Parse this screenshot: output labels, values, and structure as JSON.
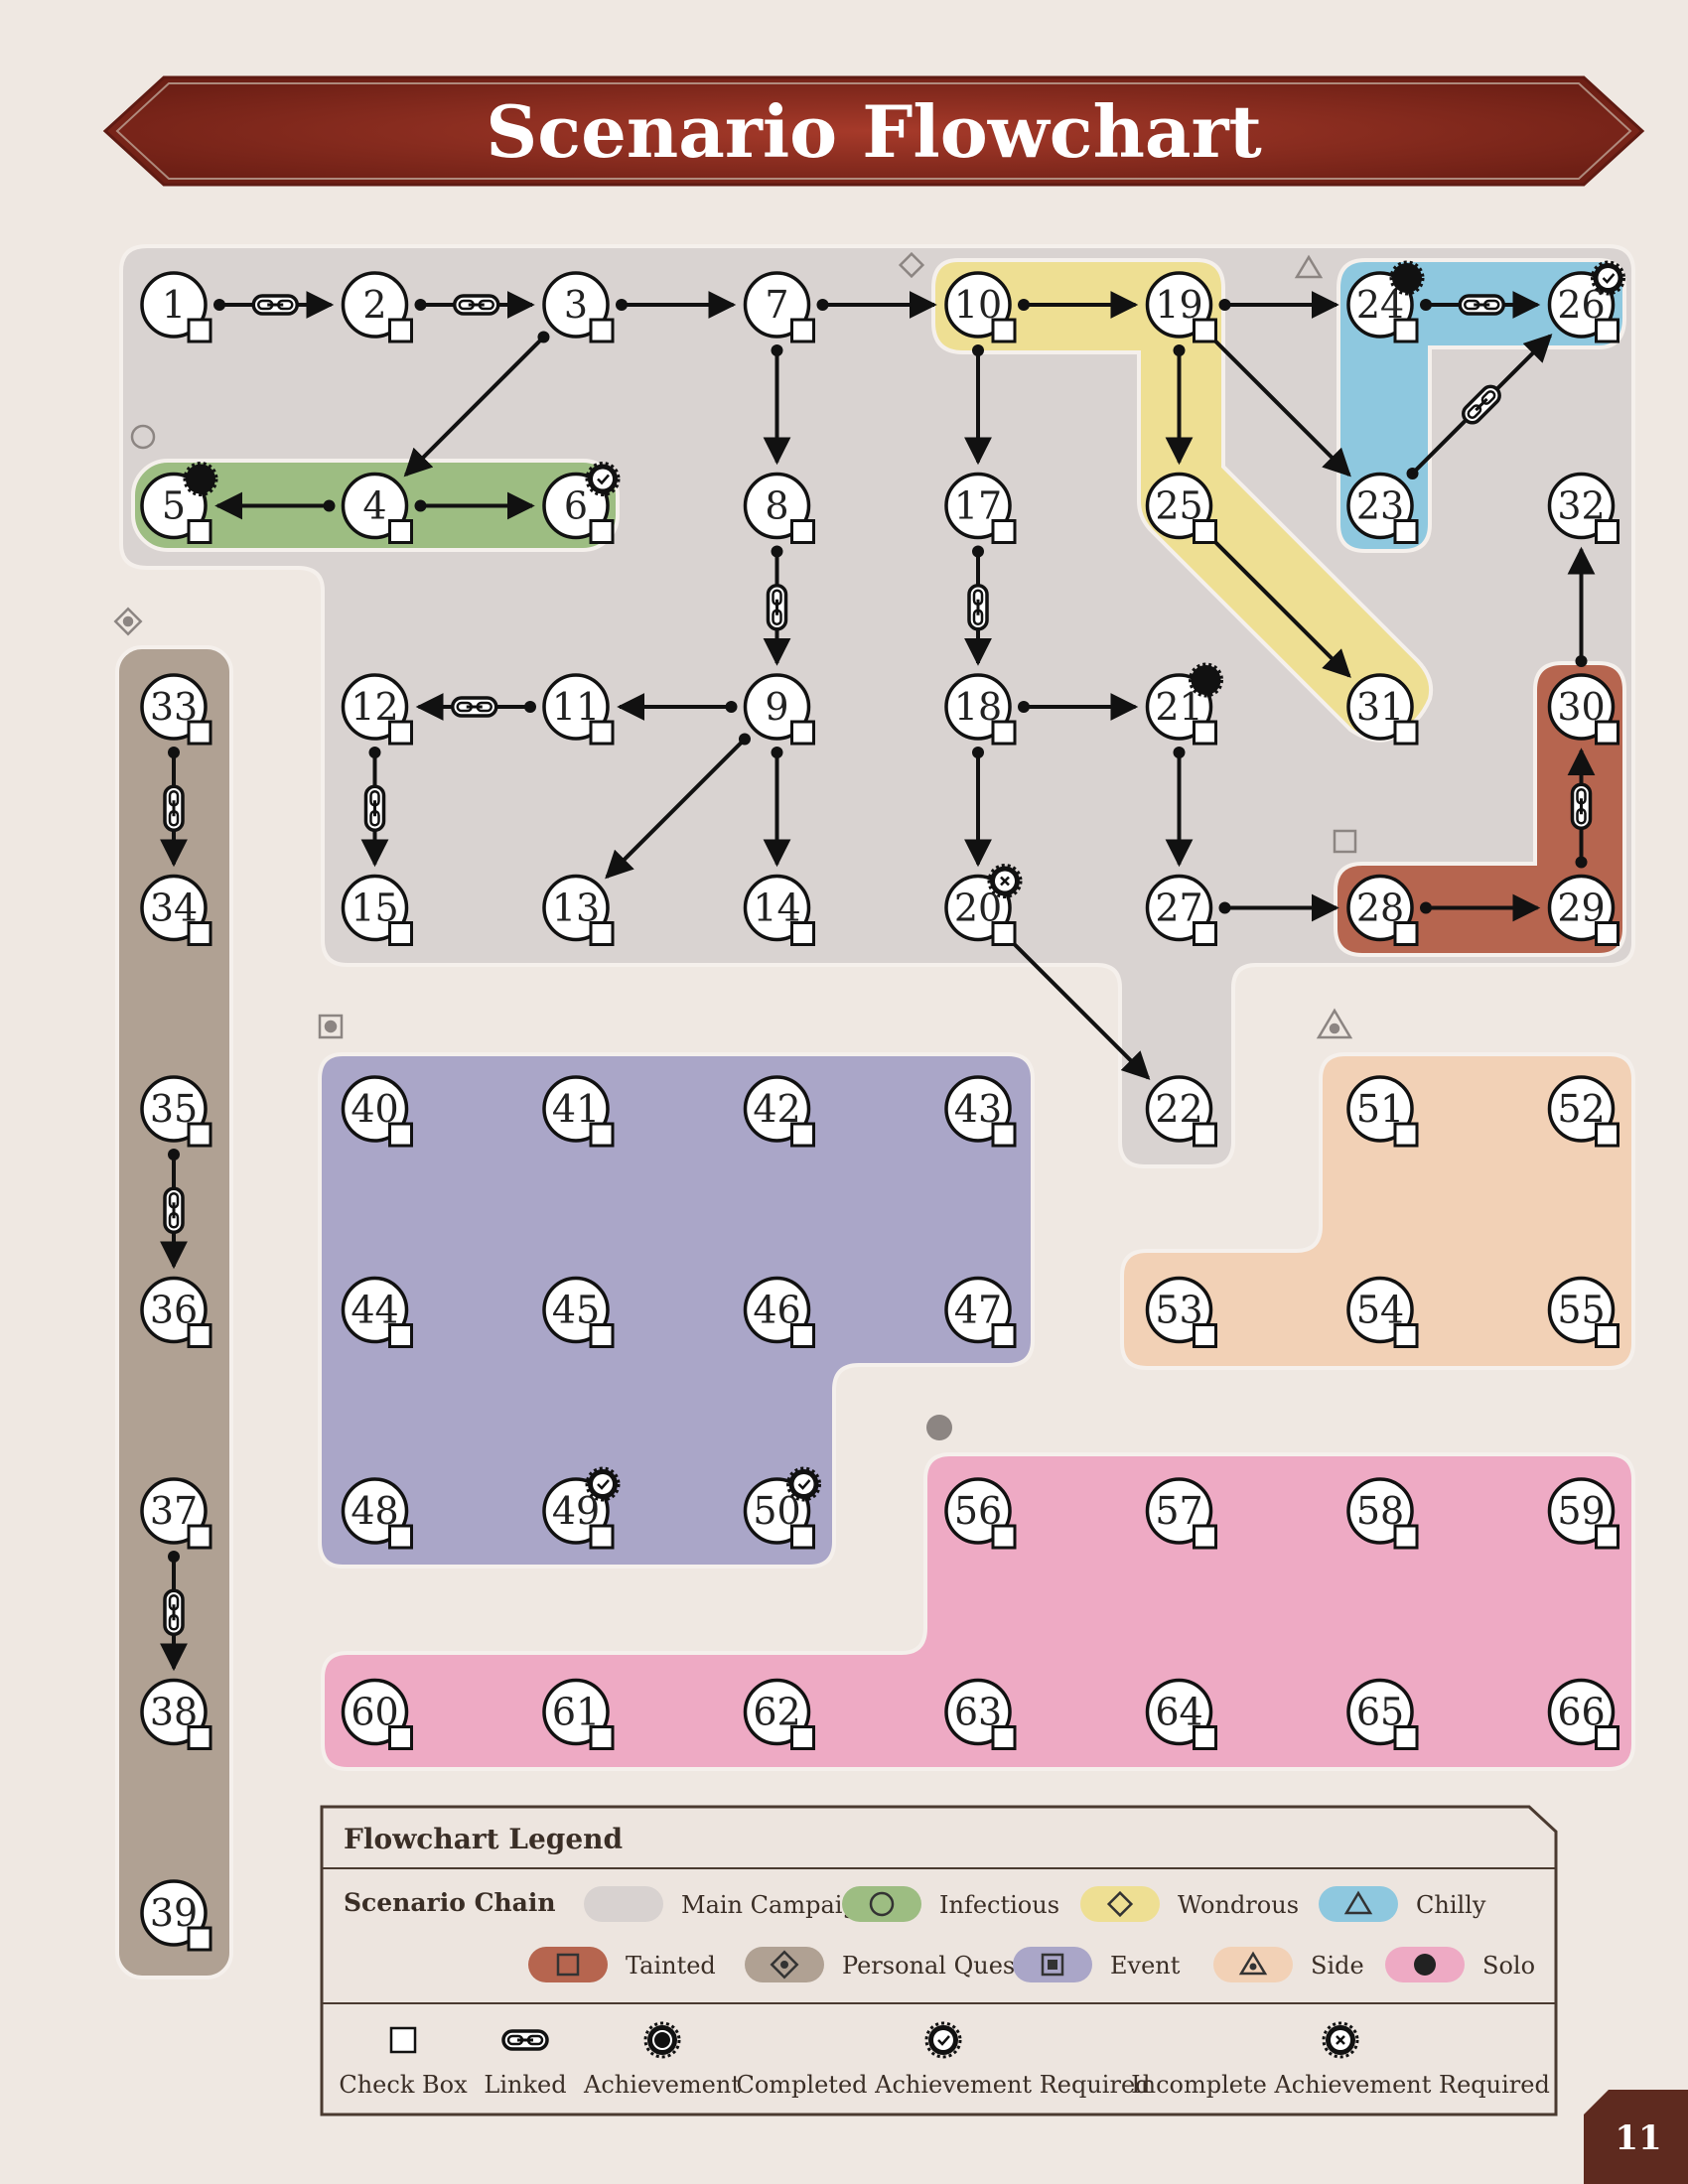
{
  "title": "Scenario Flowchart",
  "page_number": "11",
  "colors": {
    "page_bg": "#efe8e2",
    "banner": "#8a2a1e",
    "main_campaign": "#d8d2d0",
    "infectious": "#9dbd82",
    "wondrous": "#eedf93",
    "chilly": "#8ec8df",
    "tainted": "#b6654f",
    "personal_quest": "#b0a193",
    "event": "#aaa6c8",
    "side": "#f2d1b6",
    "solo": "#eeaac4",
    "line": "#111111"
  },
  "nodes": [
    {
      "id": "1",
      "col": 0,
      "row": 0,
      "badge": ""
    },
    {
      "id": "2",
      "col": 1,
      "row": 0,
      "badge": ""
    },
    {
      "id": "3",
      "col": 2,
      "row": 0,
      "badge": ""
    },
    {
      "id": "7",
      "col": 3,
      "row": 0,
      "badge": ""
    },
    {
      "id": "10",
      "col": 4,
      "row": 0,
      "badge": ""
    },
    {
      "id": "19",
      "col": 5,
      "row": 0,
      "badge": ""
    },
    {
      "id": "24",
      "col": 6,
      "row": 0,
      "badge": "achievement"
    },
    {
      "id": "26",
      "col": 7,
      "row": 0,
      "badge": "completed"
    },
    {
      "id": "5",
      "col": 0,
      "row": 1,
      "badge": "achievement"
    },
    {
      "id": "4",
      "col": 1,
      "row": 1,
      "badge": ""
    },
    {
      "id": "6",
      "col": 2,
      "row": 1,
      "badge": "completed"
    },
    {
      "id": "8",
      "col": 3,
      "row": 1,
      "badge": ""
    },
    {
      "id": "17",
      "col": 4,
      "row": 1,
      "badge": ""
    },
    {
      "id": "25",
      "col": 5,
      "row": 1,
      "badge": ""
    },
    {
      "id": "23",
      "col": 6,
      "row": 1,
      "badge": ""
    },
    {
      "id": "32",
      "col": 7,
      "row": 1,
      "badge": ""
    },
    {
      "id": "33",
      "col": 0,
      "row": 2,
      "badge": ""
    },
    {
      "id": "12",
      "col": 1,
      "row": 2,
      "badge": ""
    },
    {
      "id": "11",
      "col": 2,
      "row": 2,
      "badge": ""
    },
    {
      "id": "9",
      "col": 3,
      "row": 2,
      "badge": ""
    },
    {
      "id": "18",
      "col": 4,
      "row": 2,
      "badge": ""
    },
    {
      "id": "21",
      "col": 5,
      "row": 2,
      "badge": "achievement"
    },
    {
      "id": "31",
      "col": 6,
      "row": 2,
      "badge": ""
    },
    {
      "id": "30",
      "col": 7,
      "row": 2,
      "badge": ""
    },
    {
      "id": "34",
      "col": 0,
      "row": 3,
      "badge": ""
    },
    {
      "id": "15",
      "col": 1,
      "row": 3,
      "badge": ""
    },
    {
      "id": "13",
      "col": 2,
      "row": 3,
      "badge": ""
    },
    {
      "id": "14",
      "col": 3,
      "row": 3,
      "badge": ""
    },
    {
      "id": "20",
      "col": 4,
      "row": 3,
      "badge": "incomplete"
    },
    {
      "id": "27",
      "col": 5,
      "row": 3,
      "badge": ""
    },
    {
      "id": "28",
      "col": 6,
      "row": 3,
      "badge": ""
    },
    {
      "id": "29",
      "col": 7,
      "row": 3,
      "badge": ""
    },
    {
      "id": "35",
      "col": 0,
      "row": 4,
      "badge": ""
    },
    {
      "id": "40",
      "col": 1,
      "row": 4,
      "badge": ""
    },
    {
      "id": "41",
      "col": 2,
      "row": 4,
      "badge": ""
    },
    {
      "id": "42",
      "col": 3,
      "row": 4,
      "badge": ""
    },
    {
      "id": "43",
      "col": 4,
      "row": 4,
      "badge": ""
    },
    {
      "id": "22",
      "col": 5,
      "row": 4,
      "badge": ""
    },
    {
      "id": "51",
      "col": 6,
      "row": 4,
      "badge": ""
    },
    {
      "id": "52",
      "col": 7,
      "row": 4,
      "badge": ""
    },
    {
      "id": "36",
      "col": 0,
      "row": 5,
      "badge": ""
    },
    {
      "id": "44",
      "col": 1,
      "row": 5,
      "badge": ""
    },
    {
      "id": "45",
      "col": 2,
      "row": 5,
      "badge": ""
    },
    {
      "id": "46",
      "col": 3,
      "row": 5,
      "badge": ""
    },
    {
      "id": "47",
      "col": 4,
      "row": 5,
      "badge": ""
    },
    {
      "id": "53",
      "col": 5,
      "row": 5,
      "badge": ""
    },
    {
      "id": "54",
      "col": 6,
      "row": 5,
      "badge": ""
    },
    {
      "id": "55",
      "col": 7,
      "row": 5,
      "badge": ""
    },
    {
      "id": "37",
      "col": 0,
      "row": 6,
      "badge": ""
    },
    {
      "id": "48",
      "col": 1,
      "row": 6,
      "badge": ""
    },
    {
      "id": "49",
      "col": 2,
      "row": 6,
      "badge": "completed"
    },
    {
      "id": "50",
      "col": 3,
      "row": 6,
      "badge": "completed"
    },
    {
      "id": "56",
      "col": 4,
      "row": 6,
      "badge": ""
    },
    {
      "id": "57",
      "col": 5,
      "row": 6,
      "badge": ""
    },
    {
      "id": "58",
      "col": 6,
      "row": 6,
      "badge": ""
    },
    {
      "id": "59",
      "col": 7,
      "row": 6,
      "badge": ""
    },
    {
      "id": "38",
      "col": 0,
      "row": 7,
      "badge": ""
    },
    {
      "id": "60",
      "col": 1,
      "row": 7,
      "badge": ""
    },
    {
      "id": "61",
      "col": 2,
      "row": 7,
      "badge": ""
    },
    {
      "id": "62",
      "col": 3,
      "row": 7,
      "badge": ""
    },
    {
      "id": "63",
      "col": 4,
      "row": 7,
      "badge": ""
    },
    {
      "id": "64",
      "col": 5,
      "row": 7,
      "badge": ""
    },
    {
      "id": "65",
      "col": 6,
      "row": 7,
      "badge": ""
    },
    {
      "id": "66",
      "col": 7,
      "row": 7,
      "badge": ""
    },
    {
      "id": "39",
      "col": 0,
      "row": 8,
      "badge": ""
    }
  ],
  "edges": [
    {
      "from": "1",
      "to": "2",
      "linked": true
    },
    {
      "from": "2",
      "to": "3",
      "linked": true
    },
    {
      "from": "3",
      "to": "7",
      "linked": false
    },
    {
      "from": "7",
      "to": "10",
      "linked": false
    },
    {
      "from": "10",
      "to": "19",
      "linked": false
    },
    {
      "from": "19",
      "to": "24",
      "linked": false
    },
    {
      "from": "24",
      "to": "26",
      "linked": true
    },
    {
      "from": "3",
      "to": "4",
      "linked": false
    },
    {
      "from": "4",
      "to": "5",
      "linked": false
    },
    {
      "from": "4",
      "to": "6",
      "linked": false
    },
    {
      "from": "7",
      "to": "8",
      "linked": false
    },
    {
      "from": "10",
      "to": "17",
      "linked": false
    },
    {
      "from": "19",
      "to": "25",
      "linked": false
    },
    {
      "from": "19",
      "to": "23",
      "linked": false
    },
    {
      "from": "23",
      "to": "26",
      "linked": true
    },
    {
      "from": "8",
      "to": "9",
      "linked": true
    },
    {
      "from": "17",
      "to": "18",
      "linked": true
    },
    {
      "from": "25",
      "to": "31",
      "linked": false
    },
    {
      "from": "9",
      "to": "11",
      "linked": false
    },
    {
      "from": "11",
      "to": "12",
      "linked": true
    },
    {
      "from": "12",
      "to": "15",
      "linked": true
    },
    {
      "from": "9",
      "to": "13",
      "linked": false
    },
    {
      "from": "9",
      "to": "14",
      "linked": false
    },
    {
      "from": "18",
      "to": "21",
      "linked": false
    },
    {
      "from": "18",
      "to": "20",
      "linked": false
    },
    {
      "from": "21",
      "to": "27",
      "linked": false
    },
    {
      "from": "27",
      "to": "28",
      "linked": false
    },
    {
      "from": "28",
      "to": "29",
      "linked": false
    },
    {
      "from": "29",
      "to": "30",
      "linked": true
    },
    {
      "from": "30",
      "to": "32",
      "linked": false
    },
    {
      "from": "20",
      "to": "22",
      "linked": false
    },
    {
      "from": "33",
      "to": "34",
      "linked": true
    },
    {
      "from": "35",
      "to": "36",
      "linked": true
    },
    {
      "from": "37",
      "to": "38",
      "linked": true
    }
  ],
  "legend": {
    "title": "Flowchart Legend",
    "chain_label": "Scenario Chain",
    "chains": [
      {
        "label": "Main Campaign",
        "color": "#d8d2d0",
        "icon": "none-icon"
      },
      {
        "label": "Infectious",
        "color": "#9dbd82",
        "icon": "circle-icon"
      },
      {
        "label": "Wondrous",
        "color": "#eedf93",
        "icon": "diamond-icon"
      },
      {
        "label": "Chilly",
        "color": "#8ec8df",
        "icon": "triangle-icon"
      },
      {
        "label": "Tainted",
        "color": "#b6654f",
        "icon": "square-icon"
      },
      {
        "label": "Personal Quest",
        "color": "#b0a193",
        "icon": "diamond-square-icon"
      },
      {
        "label": "Event",
        "color": "#aaa6c8",
        "icon": "square-dot-icon"
      },
      {
        "label": "Side",
        "color": "#f2d1b6",
        "icon": "triangle-dot-icon"
      },
      {
        "label": "Solo",
        "color": "#eeaac4",
        "icon": "filled-circle-icon"
      }
    ],
    "symbols": [
      {
        "label": "Check Box",
        "icon": "checkbox-icon"
      },
      {
        "label": "Linked",
        "icon": "chain-link-icon"
      },
      {
        "label": "Achievement",
        "icon": "achievement-icon"
      },
      {
        "label": "Completed Achievement Required",
        "icon": "completed-achievement-icon"
      },
      {
        "label": "Incomplete Achievement Required",
        "icon": "incomplete-achievement-icon"
      }
    ]
  }
}
